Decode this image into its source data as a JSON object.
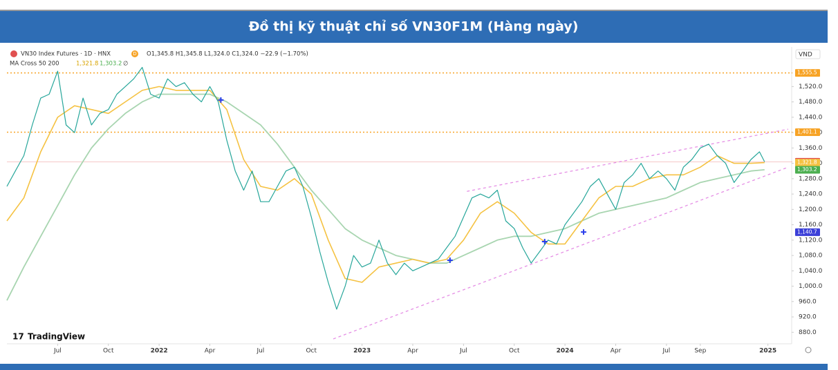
{
  "banner": {
    "title": "Đồ thị kỹ thuật chỉ số VN30F1M (Hàng ngày)"
  },
  "chart_data": {
    "type": "line",
    "header": {
      "symbol": "VN30 Index Futures · 1D · HNX",
      "badge": "D",
      "ohlc": "O1,345.8 H1,345.8 L1,324.0 C1,324.0 −22.9 (−1.70%)",
      "indicator": "MA Cross 50 200",
      "indicator_values": [
        "1,321.8",
        "1,303.2",
        "∅"
      ]
    },
    "currency": "VND",
    "watermark": "TradingView",
    "series": [
      {
        "color": "#26a69a",
        "width": 1.2,
        "x": [
          -9,
          -8.5,
          -8,
          -7.5,
          -7,
          -6.5,
          -6,
          -5.5,
          -5,
          -4.5,
          -4,
          -3.5,
          -3,
          -2.5,
          -2,
          -1.5,
          -1,
          -0.5,
          0,
          0.5,
          1,
          1.5,
          2,
          2.5,
          3,
          3.5,
          4,
          4.5,
          5,
          5.5,
          6,
          6.5,
          7,
          7.5,
          8,
          8.5,
          9,
          9.5,
          10,
          10.5,
          11,
          11.5,
          12,
          12.5,
          13,
          13.5,
          14,
          14.5,
          15,
          15.5,
          16,
          16.5,
          17,
          17.5,
          18,
          18.5,
          19,
          19.5,
          20,
          20.5,
          21,
          21.5,
          22,
          22.5,
          23,
          23.5,
          24,
          24.5,
          25,
          25.5,
          26,
          26.5,
          27,
          27.5,
          28,
          28.5,
          29,
          29.5,
          30,
          30.5,
          31,
          31.5,
          32,
          32.5,
          33,
          33.5,
          34,
          34.5,
          35,
          35.5,
          35.8
        ],
        "values": [
          1260,
          1300,
          1340,
          1420,
          1490,
          1500,
          1560,
          1420,
          1400,
          1490,
          1420,
          1450,
          1460,
          1500,
          1520,
          1540,
          1570,
          1500,
          1490,
          1540,
          1520,
          1530,
          1500,
          1480,
          1520,
          1480,
          1380,
          1300,
          1250,
          1300,
          1220,
          1220,
          1260,
          1300,
          1310,
          1260,
          1180,
          1090,
          1010,
          940,
          1000,
          1080,
          1050,
          1060,
          1120,
          1060,
          1030,
          1060,
          1040,
          1050,
          1060,
          1070,
          1100,
          1130,
          1180,
          1230,
          1240,
          1230,
          1250,
          1170,
          1150,
          1100,
          1060,
          1090,
          1120,
          1110,
          1160,
          1190,
          1220,
          1260,
          1280,
          1240,
          1200,
          1270,
          1290,
          1320,
          1280,
          1300,
          1280,
          1250,
          1310,
          1330,
          1360,
          1370,
          1340,
          1320,
          1270,
          1300,
          1330,
          1350,
          1324
        ]
      },
      {
        "color": "#f5c242",
        "width": 1.6,
        "x": [
          -9,
          -8,
          -7,
          -6,
          -5,
          -4,
          -3,
          -2,
          -1,
          0,
          1,
          2,
          3,
          4,
          5,
          6,
          7,
          8,
          9,
          10,
          11,
          12,
          13,
          14,
          15,
          16,
          17,
          18,
          19,
          20,
          21,
          22,
          23,
          24,
          25,
          26,
          27,
          28,
          29,
          30,
          31,
          32,
          33,
          34,
          35,
          35.8
        ],
        "values": [
          1170,
          1230,
          1350,
          1440,
          1470,
          1460,
          1450,
          1480,
          1510,
          1520,
          1510,
          1510,
          1510,
          1460,
          1330,
          1260,
          1250,
          1280,
          1240,
          1120,
          1020,
          1010,
          1050,
          1060,
          1070,
          1060,
          1070,
          1120,
          1190,
          1220,
          1190,
          1140,
          1110,
          1110,
          1170,
          1230,
          1260,
          1260,
          1280,
          1290,
          1290,
          1310,
          1340,
          1320,
          1320,
          1321.8
        ]
      },
      {
        "color": "#a8d5b0",
        "width": 1.8,
        "x": [
          -9,
          -8,
          -7,
          -6,
          -5,
          -4,
          -3,
          -2,
          -1,
          0,
          1,
          2,
          3,
          4,
          5,
          6,
          7,
          8,
          9,
          10,
          11,
          12,
          13,
          14,
          15,
          16,
          17,
          18,
          19,
          20,
          21,
          22,
          23,
          24,
          25,
          26,
          27,
          28,
          29,
          30,
          31,
          32,
          33,
          34,
          35,
          35.8
        ],
        "values": [
          963,
          1050,
          1130,
          1210,
          1290,
          1360,
          1410,
          1450,
          1480,
          1500,
          1500,
          1500,
          1500,
          1480,
          1450,
          1420,
          1370,
          1310,
          1250,
          1200,
          1150,
          1120,
          1100,
          1080,
          1070,
          1060,
          1060,
          1080,
          1100,
          1120,
          1130,
          1130,
          1140,
          1150,
          1170,
          1190,
          1200,
          1210,
          1220,
          1230,
          1250,
          1270,
          1280,
          1290,
          1300,
          1303.2
        ]
      }
    ],
    "xlim": [
      -9,
      37.2
    ],
    "xticks": [
      {
        "value": -6,
        "label": "Jul"
      },
      {
        "value": -3,
        "label": "Oct"
      },
      {
        "value": 0,
        "label": "2022"
      },
      {
        "value": 3,
        "label": "Apr"
      },
      {
        "value": 6,
        "label": "Jul"
      },
      {
        "value": 9,
        "label": "Oct"
      },
      {
        "value": 12,
        "label": "2023"
      },
      {
        "value": 15,
        "label": "Apr"
      },
      {
        "value": 18,
        "label": "Jul"
      },
      {
        "value": 21,
        "label": "Oct"
      },
      {
        "value": 24,
        "label": "2024"
      },
      {
        "value": 27,
        "label": "Apr"
      },
      {
        "value": 30,
        "label": "Jul"
      },
      {
        "value": 32,
        "label": "Sep"
      },
      {
        "value": 36,
        "label": "2025"
      }
    ],
    "ylim": [
      850,
      1580
    ],
    "yticks": [
      {
        "value": 880,
        "label": "880.0"
      },
      {
        "value": 920,
        "label": "920.0"
      },
      {
        "value": 960,
        "label": "960.0"
      },
      {
        "value": 1000,
        "label": "1,000.0"
      },
      {
        "value": 1040,
        "label": "1,040.0"
      },
      {
        "value": 1080,
        "label": "1,080.0"
      },
      {
        "value": 1120,
        "label": "1,120.0"
      },
      {
        "value": 1160,
        "label": "1,160.0"
      },
      {
        "value": 1200,
        "label": "1,200.0"
      },
      {
        "value": 1240,
        "label": "1,240.0"
      },
      {
        "value": 1280,
        "label": "1,280.0"
      },
      {
        "value": 1320,
        "label": "1,320.0"
      },
      {
        "value": 1360,
        "label": "1,360.0"
      },
      {
        "value": 1400,
        "label": "1,400.0"
      },
      {
        "value": 1440,
        "label": "1,440.0"
      },
      {
        "value": 1480,
        "label": "1,480.0"
      },
      {
        "value": 1520,
        "label": "1,520.0"
      }
    ],
    "price_lines": [
      {
        "value": 1555.5,
        "label": "1,555.5",
        "color": "#f7a325",
        "line": "dotted"
      },
      {
        "value": 1401.1,
        "label": "1,401.1",
        "color": "#f7a325",
        "line": "dotted"
      },
      {
        "value": 1324.0,
        "label": "1,324.0",
        "color": "#e04848",
        "line": "solid"
      },
      {
        "value": 1321.8,
        "label": "1,321.8",
        "color": "#f5c242",
        "line": "none"
      },
      {
        "value": 1303.2,
        "label": "1,303.2",
        "color": "#4caf50",
        "line": "none"
      },
      {
        "value": 1140.7,
        "label": "1,140.7",
        "color": "#3b3fd8",
        "line": "none"
      }
    ],
    "trendlines": [
      {
        "x": [
          18.2,
          37.2
        ],
        "y": [
          1247,
          1409
        ]
      },
      {
        "x": [
          10.3,
          37.2
        ],
        "y": [
          862.6,
          1310
        ]
      }
    ],
    "trend_color": "#e58ee5",
    "crosses": {
      "x": [
        3.65,
        17.2,
        22.8,
        25.1
      ],
      "y": [
        1485,
        1067.6,
        1116,
        1141
      ],
      "color": "#2a3eeb"
    }
  }
}
